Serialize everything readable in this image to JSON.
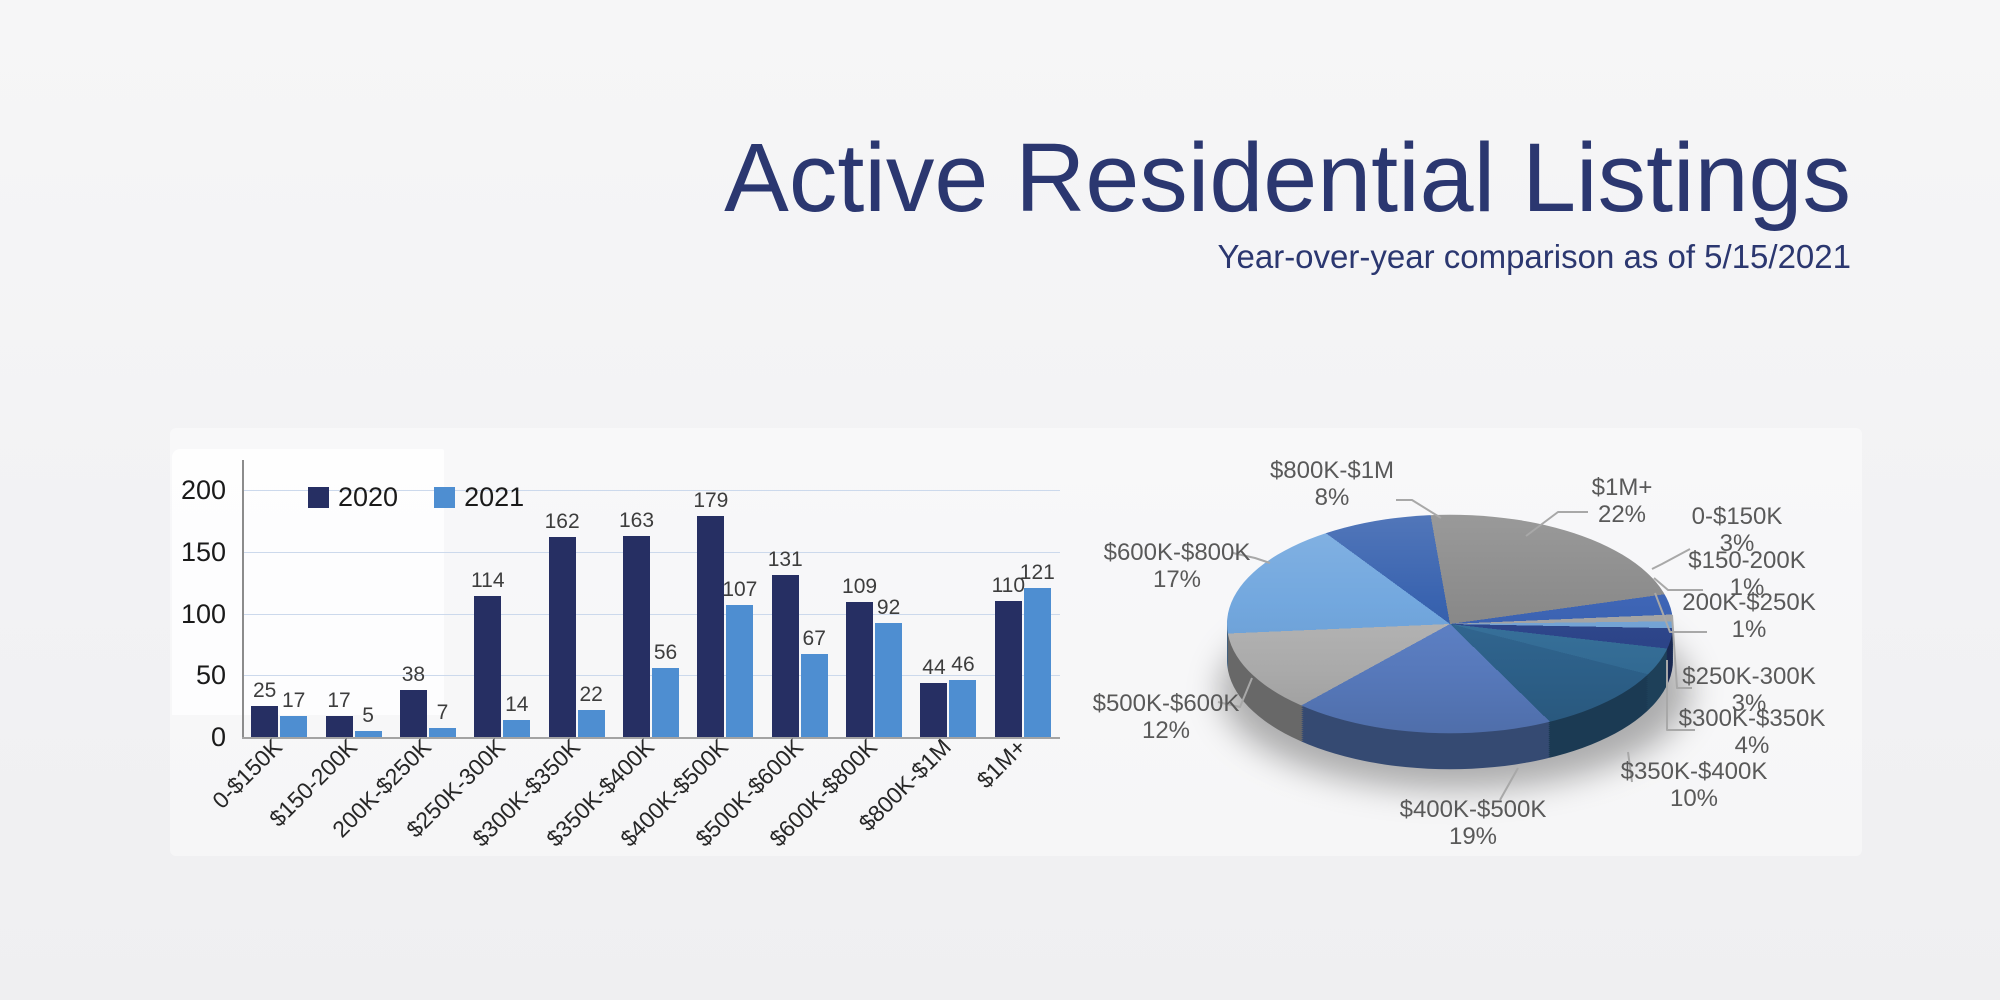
{
  "header": {
    "title": "Active Residential Listings",
    "subtitle": "Year-over-year comparison as of 5/15/2021",
    "title_color": "#2b3770"
  },
  "chart_data": [
    {
      "type": "bar",
      "title": "",
      "categories": [
        "0-$150K",
        "$150-200K",
        "200K-$250K",
        "$250K-300K",
        "$300K-$350K",
        "$350K-$400K",
        "$400K-$500K",
        "$500K-$600K",
        "$600K-$800K",
        "$800K-$1M",
        "$1M+"
      ],
      "series": [
        {
          "name": "2020",
          "color": "#262f63",
          "values": [
            25,
            17,
            38,
            114,
            162,
            163,
            179,
            131,
            109,
            44,
            110
          ]
        },
        {
          "name": "2021",
          "color": "#4e8ed1",
          "values": [
            17,
            5,
            7,
            14,
            22,
            56,
            107,
            67,
            92,
            46,
            121
          ]
        }
      ],
      "xlabel": "",
      "ylabel": "",
      "ylim": [
        0,
        200
      ],
      "yticks": [
        0,
        50,
        100,
        150,
        200
      ],
      "grid": true,
      "grid_color": "#ccd9ec",
      "axis_color": "#8c8c8c",
      "tick_label_color": "#1a1a1a",
      "value_label_color": "#3d3d3d",
      "legend_position": "top-left"
    },
    {
      "type": "pie",
      "start_angle_deg": -5,
      "label_color": "#595959",
      "leader_color": "#a8a8a8",
      "slices": [
        {
          "label": "$1M+",
          "pct": 22,
          "color": "#898989"
        },
        {
          "label": "0-$150K",
          "pct": 3,
          "color": "#3a62b4"
        },
        {
          "label": "$150-200K",
          "pct": 1,
          "color": "#a5a5a5"
        },
        {
          "label": "200K-$250K",
          "pct": 1,
          "color": "#74a5d8"
        },
        {
          "label": "$250K-300K",
          "pct": 3,
          "color": "#2c458c"
        },
        {
          "label": "$300K-$350K",
          "pct": 4,
          "color": "#35709b"
        },
        {
          "label": "$350K-$400K",
          "pct": 10,
          "color": "#2f6590"
        },
        {
          "label": "$400K-$500K",
          "pct": 19,
          "color": "#5c80c6"
        },
        {
          "label": "$500K-$600K",
          "pct": 12,
          "color": "#b4b4b4"
        },
        {
          "label": "$600K-$800K",
          "pct": 17,
          "color": "#70a6de"
        },
        {
          "label": "$800K-$1M",
          "pct": 8,
          "color": "#3560ae"
        }
      ]
    }
  ]
}
